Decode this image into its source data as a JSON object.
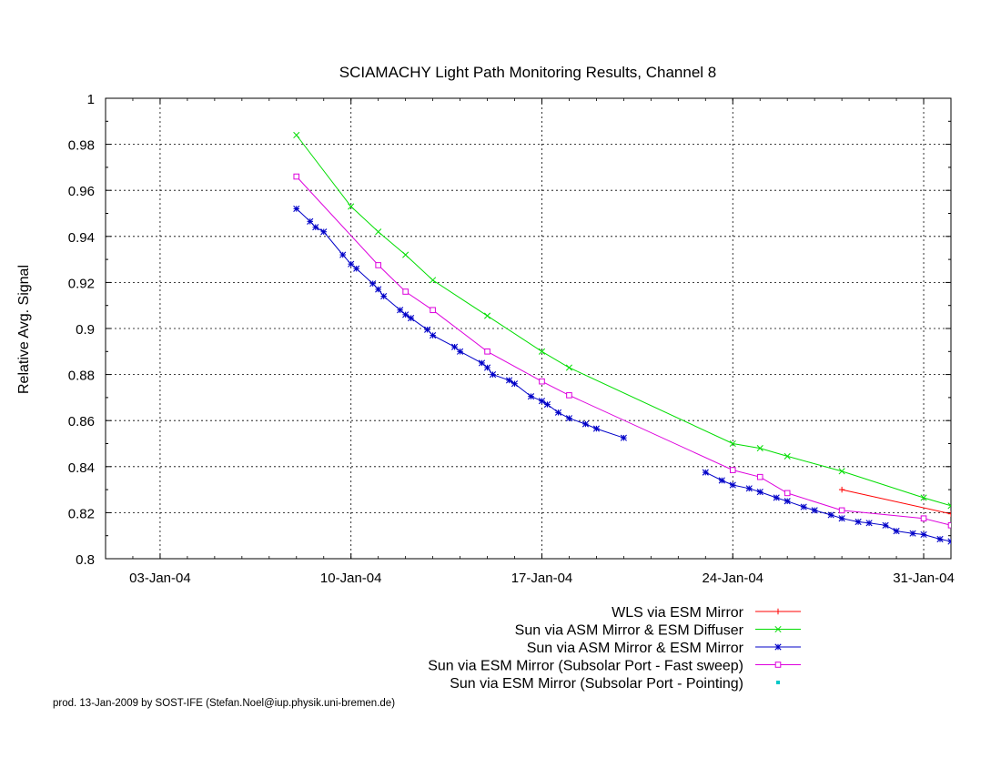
{
  "footer": "prod. 13-Jan-2009 by SOST-IFE (Stefan.Noel@iup.physik.uni-bremen.de)",
  "chart_data": {
    "type": "line",
    "title": "SCIAMACHY Light Path Monitoring Results, Channel 8",
    "ylabel": "Relative Avg. Signal",
    "xlabel": "",
    "x_axis": {
      "type": "date",
      "range": [
        "2004-01-01",
        "2004-02-01"
      ],
      "ticks": [
        {
          "date": "2004-01-03",
          "label": "03-Jan-04"
        },
        {
          "date": "2004-01-10",
          "label": "10-Jan-04"
        },
        {
          "date": "2004-01-17",
          "label": "17-Jan-04"
        },
        {
          "date": "2004-01-24",
          "label": "24-Jan-04"
        },
        {
          "date": "2004-01-31",
          "label": "31-Jan-04"
        }
      ]
    },
    "ylim": [
      0.8,
      1.0
    ],
    "yticks": [
      "0.8",
      "0.82",
      "0.84",
      "0.86",
      "0.88",
      "0.9",
      "0.92",
      "0.94",
      "0.96",
      "0.98",
      "1"
    ],
    "grid": true,
    "legend_position": "bottom",
    "series": [
      {
        "name": "WLS via ESM Mirror",
        "color": "#ff0000",
        "marker": "plus",
        "points": [
          [
            "2004-01-28",
            0.83
          ],
          [
            "2004-02-01",
            0.8195
          ]
        ]
      },
      {
        "name": "Sun via ASM Mirror & ESM Diffuser",
        "color": "#00dd00",
        "marker": "cross",
        "points": [
          [
            "2004-01-08",
            0.984
          ],
          [
            "2004-01-10",
            0.953
          ],
          [
            "2004-01-11",
            0.942
          ],
          [
            "2004-01-12",
            0.932
          ],
          [
            "2004-01-13",
            0.921
          ],
          [
            "2004-01-15",
            0.9055
          ],
          [
            "2004-01-17",
            0.89
          ],
          [
            "2004-01-18",
            0.883
          ],
          [
            "2004-01-24",
            0.85
          ],
          [
            "2004-01-25",
            0.848
          ],
          [
            "2004-01-26",
            0.8445
          ],
          [
            "2004-01-28",
            0.838
          ],
          [
            "2004-01-31",
            0.8265
          ],
          [
            "2004-02-01",
            0.823
          ]
        ]
      },
      {
        "name": "Sun via ASM Mirror & ESM Mirror",
        "color": "#0000c8",
        "marker": "star",
        "segments": [
          [
            [
              "2004-01-08",
              0.952
            ],
            [
              "2004-01-08.5",
              0.9465
            ],
            [
              "2004-01-08.7",
              0.944
            ],
            [
              "2004-01-09",
              0.942
            ],
            [
              "2004-01-09.7",
              0.932
            ],
            [
              "2004-01-10",
              0.928
            ],
            [
              "2004-01-10.2",
              0.926
            ],
            [
              "2004-01-10.8",
              0.9195
            ],
            [
              "2004-01-11",
              0.917
            ],
            [
              "2004-01-11.2",
              0.914
            ],
            [
              "2004-01-11.8",
              0.908
            ],
            [
              "2004-01-12",
              0.906
            ],
            [
              "2004-01-12.2",
              0.9045
            ],
            [
              "2004-01-12.8",
              0.8995
            ],
            [
              "2004-01-13",
              0.897
            ],
            [
              "2004-01-13.8",
              0.892
            ],
            [
              "2004-01-14",
              0.89
            ],
            [
              "2004-01-14.8",
              0.885
            ],
            [
              "2004-01-15",
              0.883
            ],
            [
              "2004-01-15.2",
              0.88
            ],
            [
              "2004-01-15.8",
              0.8775
            ],
            [
              "2004-01-16",
              0.876
            ],
            [
              "2004-01-16.6",
              0.8705
            ],
            [
              "2004-01-17",
              0.8685
            ],
            [
              "2004-01-17.2",
              0.867
            ],
            [
              "2004-01-17.6",
              0.8635
            ],
            [
              "2004-01-18",
              0.861
            ],
            [
              "2004-01-18.6",
              0.8585
            ],
            [
              "2004-01-19",
              0.8565
            ],
            [
              "2004-01-20",
              0.8525
            ]
          ],
          [
            [
              "2004-01-23",
              0.8375
            ],
            [
              "2004-01-23.6",
              0.834
            ],
            [
              "2004-01-24",
              0.832
            ],
            [
              "2004-01-24.6",
              0.8305
            ],
            [
              "2004-01-25",
              0.829
            ],
            [
              "2004-01-25.6",
              0.8265
            ],
            [
              "2004-01-26",
              0.825
            ],
            [
              "2004-01-26.6",
              0.8225
            ],
            [
              "2004-01-27",
              0.821
            ],
            [
              "2004-01-27.6",
              0.819
            ],
            [
              "2004-01-28",
              0.8175
            ],
            [
              "2004-01-28.6",
              0.816
            ],
            [
              "2004-01-29",
              0.8155
            ],
            [
              "2004-01-29.6",
              0.8145
            ],
            [
              "2004-01-30",
              0.812
            ],
            [
              "2004-01-30.6",
              0.811
            ],
            [
              "2004-01-31",
              0.8105
            ],
            [
              "2004-01-31.6",
              0.8085
            ],
            [
              "2004-02-01",
              0.8075
            ]
          ]
        ]
      },
      {
        "name": "Sun via ESM Mirror (Subsolar Port - Fast sweep)",
        "color": "#dd00dd",
        "marker": "square",
        "points": [
          [
            "2004-01-08",
            0.966
          ],
          [
            "2004-01-11",
            0.9275
          ],
          [
            "2004-01-12",
            0.916
          ],
          [
            "2004-01-13",
            0.908
          ],
          [
            "2004-01-15",
            0.89
          ],
          [
            "2004-01-17",
            0.877
          ],
          [
            "2004-01-18",
            0.871
          ],
          [
            "2004-01-24",
            0.8385
          ],
          [
            "2004-01-25",
            0.8355
          ],
          [
            "2004-01-26",
            0.8285
          ],
          [
            "2004-01-28",
            0.821
          ],
          [
            "2004-01-31",
            0.8175
          ],
          [
            "2004-02-01",
            0.8145
          ]
        ]
      },
      {
        "name": "Sun via ESM Mirror (Subsolar Port - Pointing)",
        "color": "#00c8c8",
        "marker": "dot",
        "points": []
      }
    ]
  }
}
